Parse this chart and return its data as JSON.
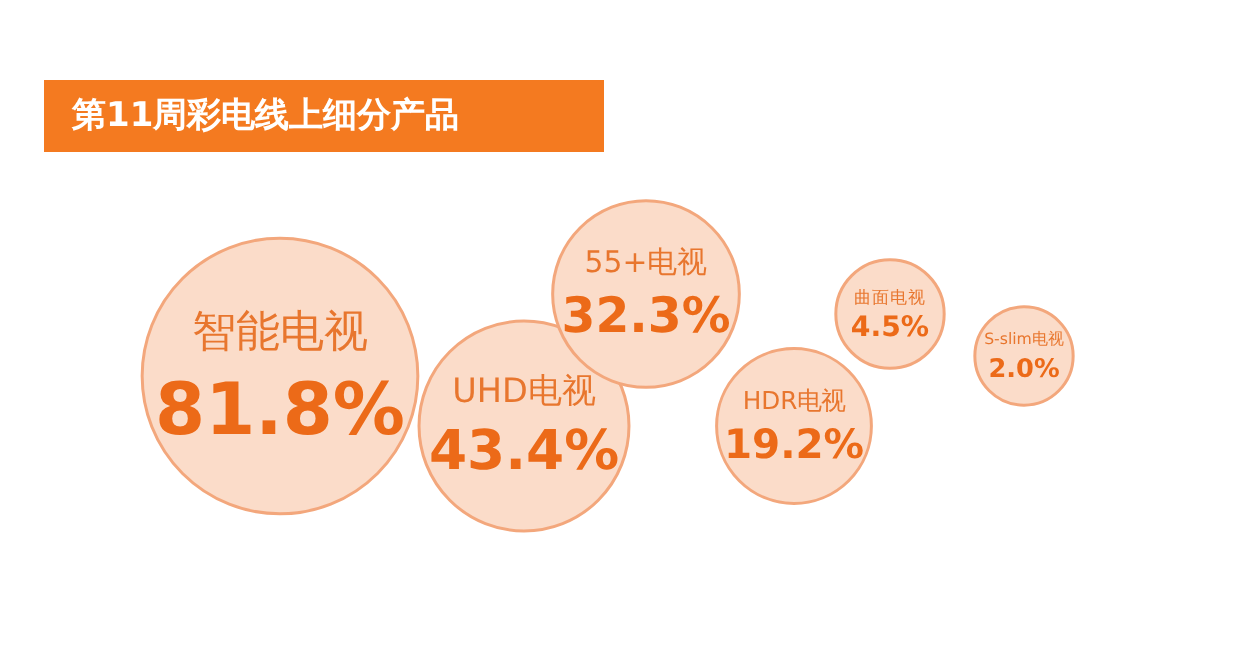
{
  "chart_data": {
    "type": "other",
    "title": "第11周彩电线上细分产品",
    "categories": [
      "智能电视",
      "UHD电视",
      "55+电视",
      "HDR电视",
      "曲面电视",
      "S-slim电视"
    ],
    "values": [
      81.8,
      43.4,
      32.3,
      19.2,
      4.5,
      2.0
    ],
    "value_labels": [
      "81.8%",
      "43.4%",
      "32.3%",
      "19.2%",
      "4.5%",
      "2.0%"
    ],
    "color": "#fbdcc9"
  }
}
